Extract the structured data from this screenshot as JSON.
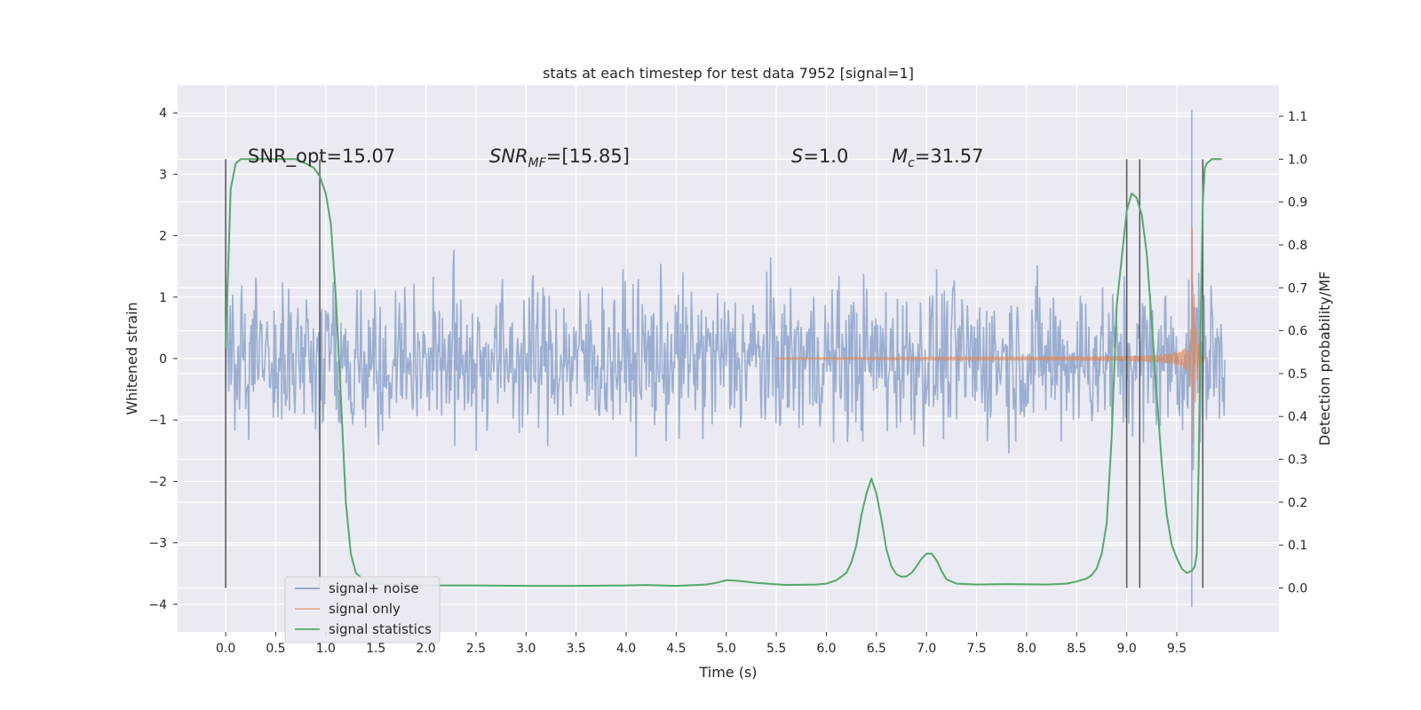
{
  "chart_data": {
    "type": "line",
    "title": "stats at each timestep for test data 7952 [signal=1]",
    "xlabel": "Time (s)",
    "ylabel": "Whitened strain",
    "y2label": "Detection probability/MF",
    "xlim": [
      -0.48,
      10.52
    ],
    "ylim": [
      -4.45,
      4.45
    ],
    "y2lim": [
      -0.1025,
      1.1725
    ],
    "xticks": [
      "0.0",
      "0.5",
      "1.0",
      "1.5",
      "2.0",
      "2.5",
      "3.0",
      "3.5",
      "4.0",
      "4.5",
      "5.0",
      "5.5",
      "6.0",
      "6.5",
      "7.0",
      "7.5",
      "8.0",
      "8.5",
      "9.0",
      "9.5"
    ],
    "yticks": [
      "4",
      "3",
      "2",
      "1",
      "0",
      "−1",
      "−2",
      "−3",
      "−4"
    ],
    "y2ticks": [
      "1.1",
      "1.0",
      "0.9",
      "0.8",
      "0.7",
      "0.6",
      "0.5",
      "0.4",
      "0.3",
      "0.2",
      "0.1",
      "0.0"
    ],
    "grid": true,
    "legend_position": "lower-left",
    "annotations": {
      "snr_opt": "SNR_opt=15.07",
      "snr_mf_sym": "SNR",
      "snr_mf_sub": "MF",
      "snr_mf_val": "=[15.85]",
      "s_sym": "S",
      "s_val": "=1.0",
      "mc_sym": "M",
      "mc_sub": "c",
      "mc_val": "=31.57"
    },
    "series": [
      {
        "name": "signal+ noise",
        "color": "#4c72b0",
        "noise_envelope": [
          -1.8,
          2.3
        ],
        "spike_time": 9.65,
        "spike_range": [
          -4.05,
          4.05
        ]
      },
      {
        "name": "signal only",
        "color": "#dd8452",
        "chirp_start": 5.5,
        "merger_time": 9.65,
        "peak_amplitude": 2.5
      },
      {
        "name": "signal statistics",
        "color": "#55a868",
        "x": [
          0.0,
          0.05,
          0.1,
          0.15,
          0.2,
          0.3,
          0.5,
          0.7,
          0.8,
          0.88,
          0.94,
          1.0,
          1.05,
          1.1,
          1.15,
          1.2,
          1.25,
          1.3,
          1.4,
          1.5,
          1.7,
          2.0,
          2.5,
          3.0,
          3.5,
          4.0,
          4.2,
          4.5,
          4.8,
          4.9,
          5.0,
          5.1,
          5.3,
          5.6,
          5.9,
          6.0,
          6.1,
          6.2,
          6.25,
          6.3,
          6.35,
          6.4,
          6.45,
          6.5,
          6.55,
          6.6,
          6.65,
          6.7,
          6.75,
          6.8,
          6.85,
          6.9,
          6.95,
          7.0,
          7.05,
          7.1,
          7.15,
          7.2,
          7.3,
          7.5,
          7.8,
          8.2,
          8.4,
          8.5,
          8.6,
          8.65,
          8.7,
          8.75,
          8.8,
          8.85,
          8.9,
          9.0,
          9.05,
          9.1,
          9.15,
          9.2,
          9.25,
          9.3,
          9.35,
          9.4,
          9.45,
          9.5,
          9.55,
          9.6,
          9.65,
          9.68,
          9.7,
          9.72,
          9.74,
          9.76,
          9.78,
          9.8,
          9.85,
          9.9,
          9.95
        ],
        "y": [
          0.56,
          0.93,
          0.99,
          1.0,
          1.0,
          1.0,
          1.0,
          1.0,
          0.99,
          0.98,
          0.96,
          0.92,
          0.85,
          0.68,
          0.45,
          0.2,
          0.08,
          0.035,
          0.015,
          0.012,
          0.008,
          0.006,
          0.006,
          0.005,
          0.005,
          0.006,
          0.007,
          0.005,
          0.008,
          0.012,
          0.018,
          0.017,
          0.012,
          0.007,
          0.008,
          0.01,
          0.018,
          0.035,
          0.06,
          0.1,
          0.17,
          0.22,
          0.255,
          0.22,
          0.16,
          0.09,
          0.05,
          0.032,
          0.026,
          0.027,
          0.035,
          0.05,
          0.068,
          0.08,
          0.08,
          0.065,
          0.04,
          0.02,
          0.01,
          0.008,
          0.009,
          0.008,
          0.01,
          0.015,
          0.022,
          0.03,
          0.045,
          0.08,
          0.15,
          0.35,
          0.66,
          0.88,
          0.92,
          0.91,
          0.87,
          0.78,
          0.62,
          0.45,
          0.29,
          0.17,
          0.1,
          0.07,
          0.045,
          0.035,
          0.04,
          0.05,
          0.08,
          0.3,
          0.65,
          0.9,
          0.98,
          0.99,
          1.0,
          1.0,
          1.0
        ]
      }
    ],
    "vlines": [
      0.0,
      0.94,
      9.0,
      9.13,
      9.76
    ]
  }
}
